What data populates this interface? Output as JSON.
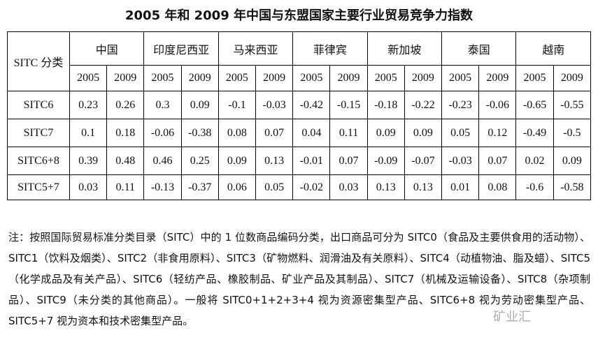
{
  "title": "2005 年和 2009 年中国与东盟国家主要行业贸易竞争力指数",
  "table": {
    "corner": "SITC 分类",
    "countries": [
      "中国",
      "印度尼西亚",
      "马来西亚",
      "菲律宾",
      "新加坡",
      "泰国",
      "越南"
    ],
    "years": [
      "2005",
      "2009"
    ],
    "rows": [
      {
        "label": "SITC6",
        "values": [
          "0.23",
          "0.26",
          "0.3",
          "0.09",
          "-0.1",
          "-0.03",
          "-0.42",
          "-0.15",
          "-0.18",
          "-0.22",
          "-0.23",
          "-0.06",
          "-0.65",
          "-0.55"
        ]
      },
      {
        "label": "SITC7",
        "values": [
          "0.1",
          "0.18",
          "-0.06",
          "-0.38",
          "0.08",
          "0.07",
          "0.04",
          "0.11",
          "0.09",
          "0.09",
          "0.05",
          "0.12",
          "-0.49",
          "-0.5"
        ]
      },
      {
        "label": "SITC6+8",
        "values": [
          "0.39",
          "0.48",
          "0.46",
          "0.25",
          "0.09",
          "0.13",
          "-0.01",
          "0.07",
          "-0.09",
          "-0.07",
          "-0.03",
          "0.07",
          "0.02",
          "0.09"
        ]
      },
      {
        "label": "SITC5+7",
        "values": [
          "0.03",
          "0.11",
          "-0.13",
          "-0.37",
          "0.06",
          "0.05",
          "-0.02",
          "0.03",
          "0.13",
          "0.13",
          "0.01",
          "0.08",
          "-0.6",
          "-0.58"
        ]
      }
    ]
  },
  "note": "注：按照国际贸易标准分类目录（SITC）中的 1 位数商品编码分类，出口商品可分为 SITC0（食品及主要供食用的活动物）、SITC1（饮料及烟类）、SITC2（非食用原料）、SITC3（矿物燃料、润滑油及有关原料）、SITC4（动植物油、脂及蜡）、SITC5（化学成品及有关产品）、SITC6（轻纺产品、橡胶制品、矿业产品及其制品）、SITC7（机械及运输设备）、SITC8（杂项制品）、SITC9（未分类的其他商品）。一般将 SITC0+1+2+3+4 视为资源密集型产品、SITC6+8 视为劳动密集型产品、SITC5+7 视为资本和技术密集型产品。",
  "watermark": "矿业汇"
}
